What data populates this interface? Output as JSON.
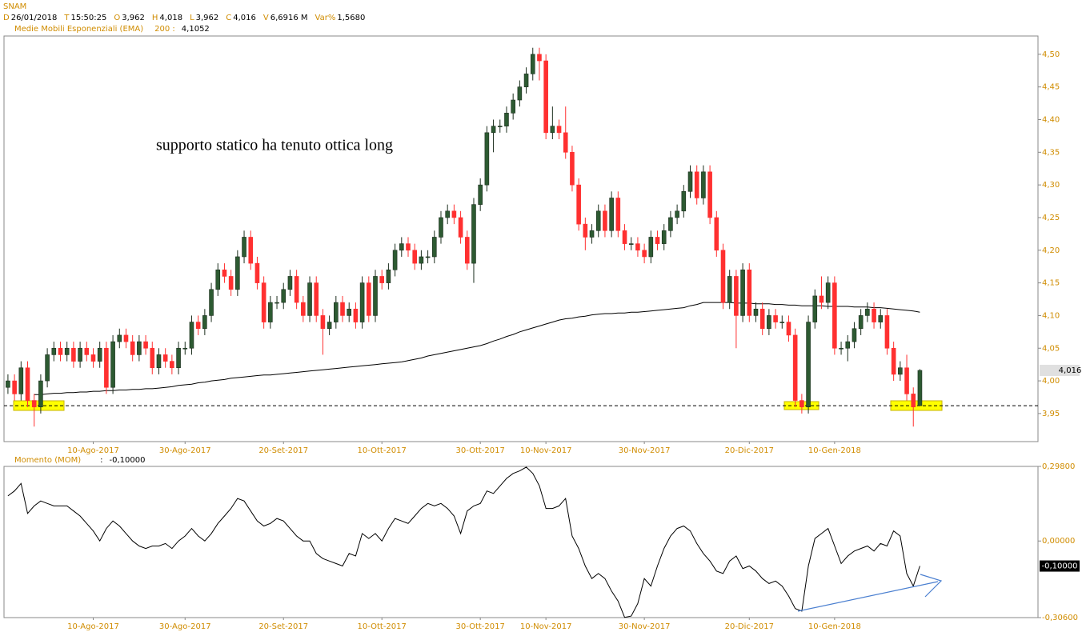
{
  "header": {
    "title": "SNAM",
    "quote": [
      {
        "key": "D",
        "value": "26/01/2018"
      },
      {
        "key": "T",
        "value": "15:50:25"
      },
      {
        "key": "O",
        "value": "3,962"
      },
      {
        "key": "H",
        "value": "4,018"
      },
      {
        "key": "L",
        "value": "3,962"
      },
      {
        "key": "C",
        "value": "4,016"
      },
      {
        "key": "V",
        "value": "6,6916 M"
      },
      {
        "key": "Var%",
        "value": "1,5680"
      }
    ]
  },
  "chart_data": [
    {
      "type": "candlestick",
      "annotation": "supporto statico ha tenuto ottica long",
      "up_color": "#2d5a32",
      "down_color": "#ff3030",
      "xlim": [
        -0.6,
        157
      ],
      "ylim": [
        3.907,
        4.528
      ],
      "xticks": [
        {
          "value": 13,
          "label": "10-Ago-2017"
        },
        {
          "value": 27,
          "label": "30-Ago-2017"
        },
        {
          "value": 42,
          "label": "20-Set-2017"
        },
        {
          "value": 57,
          "label": "10-Ott-2017"
        },
        {
          "value": 72,
          "label": "30-Ott-2017"
        },
        {
          "value": 82,
          "label": "10-Nov-2017"
        },
        {
          "value": 97,
          "label": "30-Nov-2017"
        },
        {
          "value": 113,
          "label": "20-Dic-2017"
        },
        {
          "value": 126,
          "label": "10-Gen-2018"
        }
      ],
      "yticks": [
        {
          "value": 3.95,
          "label": "3,95"
        },
        {
          "value": 4.0,
          "label": "4,00"
        },
        {
          "value": 4.05,
          "label": "4,05"
        },
        {
          "value": 4.1,
          "label": "4,10"
        },
        {
          "value": 4.15,
          "label": "4,15"
        },
        {
          "value": 4.2,
          "label": "4,20"
        },
        {
          "value": 4.25,
          "label": "4,25"
        },
        {
          "value": 4.3,
          "label": "4,30"
        },
        {
          "value": 4.35,
          "label": "4,35"
        },
        {
          "value": 4.4,
          "label": "4,40"
        },
        {
          "value": 4.45,
          "label": "4,45"
        },
        {
          "value": 4.5,
          "label": "4,50"
        }
      ],
      "support_level": 3.962,
      "last_price_label": "4,016",
      "open": [
        3.99,
        4.0,
        3.98,
        4.02,
        3.97,
        3.96,
        4.0,
        4.04,
        4.05,
        4.04,
        4.05,
        4.03,
        4.05,
        4.04,
        4.03,
        4.05,
        3.99,
        4.06,
        4.07,
        4.06,
        4.04,
        4.06,
        4.05,
        4.02,
        4.04,
        4.03,
        4.02,
        4.05,
        4.05,
        4.09,
        4.08,
        4.1,
        4.14,
        4.17,
        4.16,
        4.14,
        4.19,
        4.22,
        4.18,
        4.15,
        4.09,
        4.12,
        4.12,
        4.14,
        4.16,
        4.12,
        4.1,
        4.15,
        4.1,
        4.08,
        4.09,
        4.12,
        4.1,
        4.11,
        4.09,
        4.15,
        4.1,
        4.16,
        4.15,
        4.17,
        4.2,
        4.21,
        4.2,
        4.18,
        4.19,
        4.19,
        4.22,
        4.25,
        4.26,
        4.25,
        4.22,
        4.18,
        4.27,
        4.3,
        4.38,
        4.39,
        4.39,
        4.41,
        4.43,
        4.45,
        4.47,
        4.5,
        4.49,
        4.38,
        4.39,
        4.38,
        4.35,
        4.3,
        4.24,
        4.22,
        4.23,
        4.26,
        4.23,
        4.28,
        4.23,
        4.21,
        4.21,
        4.2,
        4.19,
        4.22,
        4.21,
        4.23,
        4.25,
        4.26,
        4.29,
        4.32,
        4.28,
        4.32,
        4.25,
        4.2,
        4.12,
        4.16,
        4.1,
        4.17,
        4.1,
        4.11,
        4.08,
        4.1,
        4.09,
        4.09,
        4.07,
        3.97,
        3.96,
        4.09,
        4.13,
        4.12,
        4.15,
        4.05,
        4.05,
        4.06,
        4.08,
        4.1,
        4.11,
        4.09,
        4.1,
        4.05,
        4.01,
        4.02,
        3.98,
        3.962
      ],
      "high": [
        4.01,
        4.01,
        4.03,
        4.03,
        3.98,
        4.01,
        4.05,
        4.06,
        4.06,
        4.06,
        4.06,
        4.06,
        4.06,
        4.05,
        4.06,
        4.06,
        4.07,
        4.08,
        4.08,
        4.07,
        4.07,
        4.07,
        4.06,
        4.05,
        4.05,
        4.04,
        4.06,
        4.06,
        4.1,
        4.1,
        4.11,
        4.15,
        4.18,
        4.18,
        4.17,
        4.2,
        4.23,
        4.23,
        4.19,
        4.16,
        4.13,
        4.13,
        4.15,
        4.17,
        4.17,
        4.13,
        4.16,
        4.16,
        4.11,
        4.1,
        4.13,
        4.13,
        4.12,
        4.12,
        4.16,
        4.16,
        4.17,
        4.17,
        4.18,
        4.21,
        4.22,
        4.22,
        4.21,
        4.2,
        4.2,
        4.23,
        4.26,
        4.27,
        4.27,
        4.26,
        4.23,
        4.28,
        4.31,
        4.39,
        4.4,
        4.4,
        4.42,
        4.44,
        4.46,
        4.48,
        4.51,
        4.51,
        4.5,
        4.42,
        4.4,
        4.42,
        4.36,
        4.31,
        4.25,
        4.24,
        4.27,
        4.27,
        4.29,
        4.29,
        4.24,
        4.22,
        4.22,
        4.21,
        4.23,
        4.23,
        4.24,
        4.26,
        4.27,
        4.3,
        4.33,
        4.33,
        4.33,
        4.33,
        4.26,
        4.21,
        4.17,
        4.17,
        4.18,
        4.18,
        4.12,
        4.12,
        4.11,
        4.11,
        4.1,
        4.1,
        4.08,
        3.98,
        4.1,
        4.14,
        4.16,
        4.16,
        4.16,
        4.06,
        4.07,
        4.09,
        4.11,
        4.12,
        4.12,
        4.11,
        4.11,
        4.06,
        4.03,
        4.04,
        3.99,
        4.018
      ],
      "low": [
        3.98,
        3.97,
        3.97,
        3.96,
        3.93,
        3.95,
        3.99,
        4.03,
        4.03,
        4.03,
        4.02,
        4.02,
        4.03,
        4.02,
        4.02,
        3.98,
        3.98,
        4.05,
        4.05,
        4.03,
        4.03,
        4.04,
        4.01,
        4.01,
        4.02,
        4.01,
        4.01,
        4.04,
        4.04,
        4.07,
        4.07,
        4.09,
        4.13,
        4.15,
        4.13,
        4.13,
        4.18,
        4.17,
        4.14,
        4.08,
        4.08,
        4.11,
        4.11,
        4.13,
        4.11,
        4.09,
        4.09,
        4.09,
        4.04,
        4.07,
        4.08,
        4.09,
        4.09,
        4.08,
        4.08,
        4.09,
        4.09,
        4.14,
        4.14,
        4.16,
        4.19,
        4.19,
        4.17,
        4.17,
        4.18,
        4.18,
        4.21,
        4.24,
        4.24,
        4.21,
        4.17,
        4.15,
        4.26,
        4.29,
        4.35,
        4.38,
        4.38,
        4.4,
        4.42,
        4.44,
        4.46,
        4.46,
        4.37,
        4.37,
        4.37,
        4.34,
        4.29,
        4.23,
        4.2,
        4.21,
        4.22,
        4.22,
        4.22,
        4.22,
        4.2,
        4.2,
        4.19,
        4.18,
        4.18,
        4.2,
        4.2,
        4.22,
        4.24,
        4.25,
        4.28,
        4.27,
        4.27,
        4.24,
        4.19,
        4.11,
        4.11,
        4.05,
        4.09,
        4.09,
        4.09,
        4.07,
        4.07,
        4.08,
        4.08,
        4.06,
        3.96,
        3.95,
        3.95,
        4.08,
        4.11,
        4.11,
        4.04,
        4.04,
        4.03,
        4.05,
        4.07,
        4.09,
        4.08,
        4.08,
        4.04,
        4.0,
        4.0,
        3.97,
        3.93,
        3.962
      ],
      "close": [
        4.0,
        3.98,
        4.02,
        3.97,
        3.96,
        4.0,
        4.04,
        4.05,
        4.04,
        4.05,
        4.03,
        4.05,
        4.04,
        4.03,
        4.05,
        3.99,
        4.06,
        4.07,
        4.06,
        4.04,
        4.06,
        4.05,
        4.02,
        4.04,
        4.03,
        4.02,
        4.05,
        4.05,
        4.09,
        4.08,
        4.1,
        4.14,
        4.17,
        4.16,
        4.14,
        4.19,
        4.22,
        4.18,
        4.15,
        4.09,
        4.12,
        4.12,
        4.14,
        4.16,
        4.12,
        4.1,
        4.15,
        4.1,
        4.08,
        4.09,
        4.12,
        4.1,
        4.11,
        4.09,
        4.15,
        4.1,
        4.16,
        4.15,
        4.17,
        4.2,
        4.21,
        4.2,
        4.18,
        4.19,
        4.19,
        4.22,
        4.25,
        4.26,
        4.25,
        4.22,
        4.18,
        4.27,
        4.3,
        4.38,
        4.39,
        4.39,
        4.41,
        4.43,
        4.45,
        4.47,
        4.5,
        4.49,
        4.38,
        4.39,
        4.38,
        4.35,
        4.3,
        4.24,
        4.22,
        4.23,
        4.26,
        4.23,
        4.28,
        4.23,
        4.21,
        4.21,
        4.2,
        4.19,
        4.22,
        4.21,
        4.23,
        4.25,
        4.26,
        4.29,
        4.32,
        4.28,
        4.32,
        4.25,
        4.2,
        4.12,
        4.16,
        4.1,
        4.17,
        4.1,
        4.11,
        4.08,
        4.1,
        4.09,
        4.09,
        4.07,
        3.97,
        3.96,
        4.09,
        4.13,
        4.12,
        4.15,
        4.05,
        4.05,
        4.06,
        4.08,
        4.1,
        4.11,
        4.09,
        4.1,
        4.05,
        4.01,
        4.02,
        3.98,
        3.96,
        4.016
      ],
      "series": [
        {
          "name": "Medie Mobili Esponenziali (EMA)",
          "period_label": "200 :",
          "last_value_label": "4,1052",
          "color": "#000000",
          "values": [
            null,
            null,
            null,
            null,
            3.979,
            3.979,
            3.98,
            3.981,
            3.981,
            3.982,
            3.982,
            3.983,
            3.983,
            3.984,
            3.984,
            3.985,
            3.985,
            3.986,
            3.986,
            3.987,
            3.987,
            3.988,
            3.988,
            3.989,
            3.99,
            3.991,
            3.993,
            3.994,
            3.995,
            3.997,
            3.998,
            4.0,
            4.001,
            4.002,
            4.004,
            4.005,
            4.006,
            4.007,
            4.008,
            4.009,
            4.009,
            4.01,
            4.011,
            4.012,
            4.013,
            4.014,
            4.015,
            4.016,
            4.017,
            4.018,
            4.019,
            4.02,
            4.021,
            4.022,
            4.023,
            4.024,
            4.025,
            4.026,
            4.027,
            4.028,
            4.029,
            4.031,
            4.033,
            4.035,
            4.038,
            4.04,
            4.042,
            4.044,
            4.046,
            4.048,
            4.05,
            4.052,
            4.054,
            4.057,
            4.061,
            4.064,
            4.068,
            4.071,
            4.075,
            4.078,
            4.081,
            4.084,
            4.087,
            4.09,
            4.093,
            4.095,
            4.096,
            4.098,
            4.099,
            4.101,
            4.102,
            4.103,
            4.103,
            4.104,
            4.104,
            4.105,
            4.105,
            4.106,
            4.107,
            4.108,
            4.109,
            4.11,
            4.111,
            4.112,
            4.115,
            4.117,
            4.12,
            4.12,
            4.12,
            4.12,
            4.12,
            4.119,
            4.119,
            4.119,
            4.118,
            4.118,
            4.118,
            4.117,
            4.117,
            4.116,
            4.116,
            4.115,
            4.115,
            4.115,
            4.115,
            4.114,
            4.114,
            4.114,
            4.114,
            4.113,
            4.113,
            4.113,
            4.112,
            4.112,
            4.111,
            4.11,
            4.109,
            4.108,
            4.107,
            4.1052
          ]
        }
      ]
    },
    {
      "type": "line",
      "title": "Momento (MOM)",
      "current_prefix": ":",
      "current_label": "-0,10000",
      "xlim": [
        -0.6,
        157
      ],
      "ylim": [
        -0.306,
        0.298
      ],
      "xticks": [
        {
          "value": 13,
          "label": "10-Ago-2017"
        },
        {
          "value": 27,
          "label": "30-Ago-2017"
        },
        {
          "value": 42,
          "label": "20-Set-2017"
        },
        {
          "value": 57,
          "label": "10-Ott-2017"
        },
        {
          "value": 72,
          "label": "30-Ott-2017"
        },
        {
          "value": 82,
          "label": "10-Nov-2017"
        },
        {
          "value": 97,
          "label": "30-Nov-2017"
        },
        {
          "value": 113,
          "label": "20-Dic-2017"
        },
        {
          "value": 126,
          "label": "10-Gen-2018"
        }
      ],
      "yticks": [
        {
          "value": 0.298,
          "label": "0,29800"
        },
        {
          "value": 0,
          "label": "0,00000"
        },
        {
          "value": -0.306,
          "label": "-0,30600"
        }
      ],
      "color": "#000000",
      "values": [
        0.18,
        0.2,
        0.23,
        0.11,
        0.14,
        0.16,
        0.15,
        0.14,
        0.14,
        0.14,
        0.12,
        0.1,
        0.07,
        0.04,
        0.0,
        0.05,
        0.08,
        0.06,
        0.03,
        0.0,
        -0.02,
        -0.03,
        -0.02,
        -0.02,
        -0.01,
        -0.03,
        0.0,
        0.02,
        0.05,
        0.02,
        0.0,
        0.03,
        0.07,
        0.1,
        0.13,
        0.17,
        0.16,
        0.12,
        0.08,
        0.06,
        0.07,
        0.09,
        0.08,
        0.05,
        0.02,
        0.0,
        0.0,
        -0.05,
        -0.07,
        -0.08,
        -0.09,
        -0.1,
        -0.05,
        -0.06,
        0.03,
        0.01,
        0.03,
        0.0,
        0.05,
        0.09,
        0.08,
        0.07,
        0.1,
        0.13,
        0.15,
        0.14,
        0.15,
        0.13,
        0.1,
        0.03,
        0.12,
        0.14,
        0.15,
        0.2,
        0.19,
        0.22,
        0.25,
        0.27,
        0.28,
        0.295,
        0.27,
        0.22,
        0.13,
        0.13,
        0.14,
        0.17,
        0.02,
        -0.03,
        -0.1,
        -0.15,
        -0.13,
        -0.15,
        -0.2,
        -0.24,
        -0.305,
        -0.3,
        -0.25,
        -0.15,
        -0.18,
        -0.1,
        -0.03,
        0.02,
        0.05,
        0.06,
        0.04,
        -0.01,
        -0.05,
        -0.08,
        -0.12,
        -0.13,
        -0.08,
        -0.06,
        -0.11,
        -0.1,
        -0.12,
        -0.15,
        -0.17,
        -0.16,
        -0.18,
        -0.22,
        -0.27,
        -0.28,
        -0.1,
        0.01,
        0.03,
        0.05,
        -0.02,
        -0.09,
        -0.06,
        -0.04,
        -0.03,
        -0.02,
        -0.04,
        -0.01,
        -0.02,
        0.04,
        0.02,
        -0.13,
        -0.18,
        -0.1
      ]
    }
  ]
}
